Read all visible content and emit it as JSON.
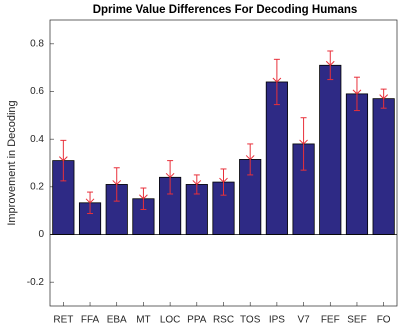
{
  "chart_data": {
    "type": "bar",
    "title": "Dprime Value Differences For Decoding Humans",
    "y_label": "Improvement in Decoding",
    "categories": [
      "RET",
      "FFA",
      "EBA",
      "MT",
      "LOC",
      "PPA",
      "RSC",
      "TOS",
      "IPS",
      "V7",
      "FEF",
      "SEF",
      "FO"
    ],
    "series": [
      {
        "values": [
          0.31,
          0.133,
          0.21,
          0.15,
          0.24,
          0.21,
          0.22,
          0.315,
          0.64,
          0.38,
          0.71,
          0.59,
          0.57
        ],
        "errors": [
          0.085,
          0.045,
          0.07,
          0.045,
          0.07,
          0.04,
          0.055,
          0.065,
          0.095,
          0.11,
          0.06,
          0.07,
          0.04
        ],
        "color": "#2e2a85",
        "error_color": "#e8303a"
      }
    ],
    "ylim": [
      -0.3,
      0.9
    ],
    "yticks": [
      -0.2,
      0,
      0.2,
      0.4,
      0.6,
      0.8
    ]
  }
}
